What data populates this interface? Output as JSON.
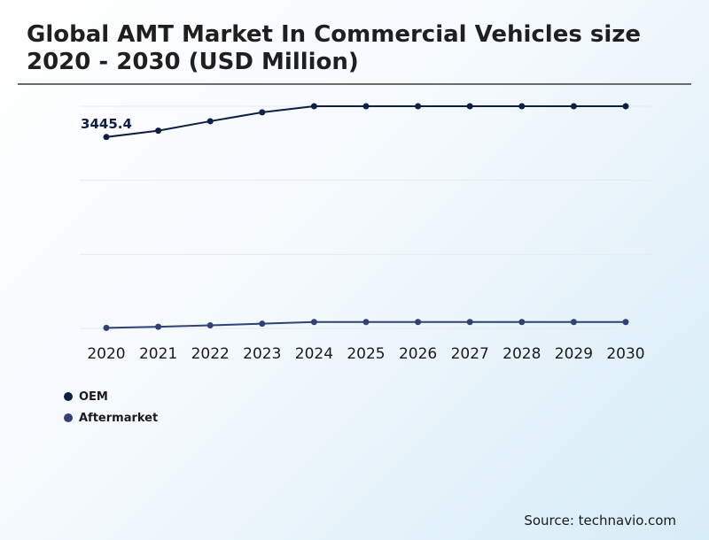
{
  "title": "Global AMT Market In Commercial Vehicles size 2020 - 2030 (USD Million)",
  "source": "Source: technavio.com",
  "chart_data": {
    "type": "line",
    "title": "Global AMT Market In Commercial Vehicles size 2020 - 2030 (USD Million)",
    "xlabel": "",
    "ylabel": "USD Million",
    "categories": [
      "2020",
      "2021",
      "2022",
      "2023",
      "2024",
      "2025",
      "2026",
      "2027",
      "2028",
      "2029",
      "2030"
    ],
    "ylim": [
      0,
      4000
    ],
    "grid": true,
    "legend_position": "bottom-left",
    "series": [
      {
        "name": "OEM",
        "color": "#0e1e45",
        "values": [
          3445.4,
          3560,
          3730,
          3890,
          4000,
          4000,
          4000,
          4000,
          4000,
          4000,
          4000
        ]
      },
      {
        "name": "Aftermarket",
        "color": "#2f4175",
        "values": [
          10,
          30,
          55,
          85,
          115,
          115,
          115,
          115,
          115,
          115,
          115
        ]
      }
    ],
    "annotations": [
      {
        "series": "OEM",
        "category": "2020",
        "text": "3445.4"
      }
    ]
  }
}
